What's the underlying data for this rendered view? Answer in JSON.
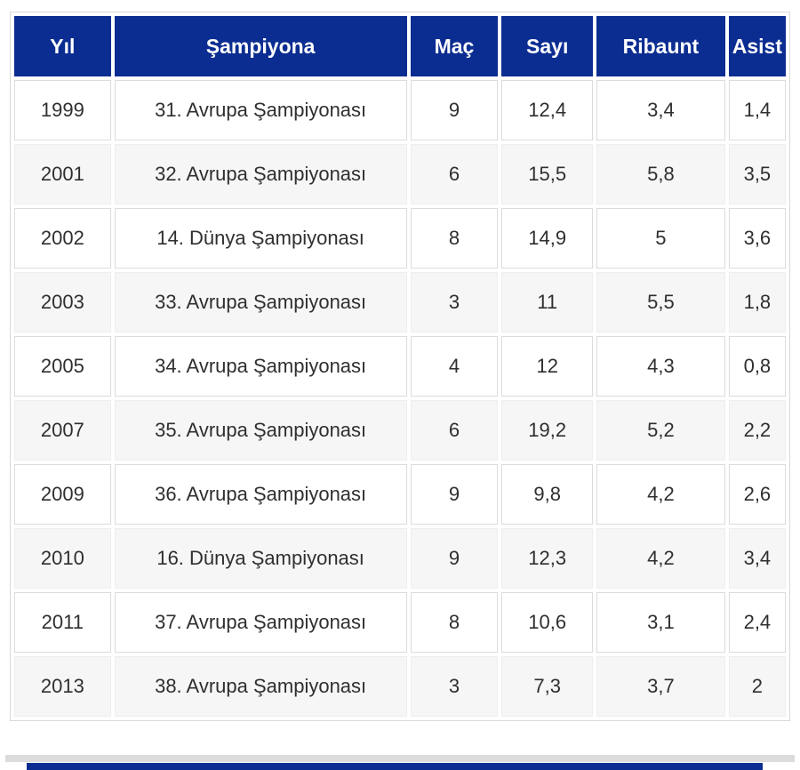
{
  "colors": {
    "header_bg": "#0b2d91",
    "header_text": "#ffffff",
    "cell_text": "#2f2f2f",
    "row_stripe": "#f6f6f6",
    "row_plain": "#ffffff",
    "grid_border": "#dcdcdc",
    "bottom_band_gray": "#dcdcdc",
    "bottom_band_navy": "#0b2d91"
  },
  "table": {
    "columns": [
      {
        "key": "yil",
        "label": "Yıl"
      },
      {
        "key": "sampiyona",
        "label": "Şampiyona"
      },
      {
        "key": "mac",
        "label": "Maç"
      },
      {
        "key": "sayi",
        "label": "Sayı"
      },
      {
        "key": "ribaunt",
        "label": "Ribaunt"
      },
      {
        "key": "asist",
        "label": "Asist"
      }
    ],
    "rows": [
      [
        "1999",
        "31. Avrupa Şampiyonası",
        "9",
        "12,4",
        "3,4",
        "1,4"
      ],
      [
        "2001",
        "32. Avrupa Şampiyonası",
        "6",
        "15,5",
        "5,8",
        "3,5"
      ],
      [
        "2002",
        "14. Dünya Şampiyonası",
        "8",
        "14,9",
        "5",
        "3,6"
      ],
      [
        "2003",
        "33. Avrupa Şampiyonası",
        "3",
        "11",
        "5,5",
        "1,8"
      ],
      [
        "2005",
        "34. Avrupa Şampiyonası",
        "4",
        "12",
        "4,3",
        "0,8"
      ],
      [
        "2007",
        "35. Avrupa Şampiyonası",
        "6",
        "19,2",
        "5,2",
        "2,2"
      ],
      [
        "2009",
        "36. Avrupa Şampiyonası",
        "9",
        "9,8",
        "4,2",
        "2,6"
      ],
      [
        "2010",
        "16. Dünya Şampiyonası",
        "9",
        "12,3",
        "4,2",
        "3,4"
      ],
      [
        "2011",
        "37. Avrupa Şampiyonası",
        "8",
        "10,6",
        "3,1",
        "2,4"
      ],
      [
        "2013",
        "38. Avrupa Şampiyonası",
        "3",
        "7,3",
        "3,7",
        "2"
      ]
    ]
  },
  "chart_data": {
    "type": "table",
    "columns": [
      "Yıl",
      "Şampiyona",
      "Maç",
      "Sayı",
      "Ribaunt",
      "Asist"
    ],
    "rows": [
      [
        "1999",
        "31. Avrupa Şampiyonası",
        "9",
        "12,4",
        "3,4",
        "1,4"
      ],
      [
        "2001",
        "32. Avrupa Şampiyonası",
        "6",
        "15,5",
        "5,8",
        "3,5"
      ],
      [
        "2002",
        "14. Dünya Şampiyonası",
        "8",
        "14,9",
        "5",
        "3,6"
      ],
      [
        "2003",
        "33. Avrupa Şampiyonası",
        "3",
        "11",
        "5,5",
        "1,8"
      ],
      [
        "2005",
        "34. Avrupa Şampiyonası",
        "4",
        "12",
        "4,3",
        "0,8"
      ],
      [
        "2007",
        "35. Avrupa Şampiyonası",
        "6",
        "19,2",
        "5,2",
        "2,2"
      ],
      [
        "2009",
        "36. Avrupa Şampiyonası",
        "9",
        "9,8",
        "4,2",
        "2,6"
      ],
      [
        "2010",
        "16. Dünya Şampiyonası",
        "9",
        "12,3",
        "4,2",
        "3,4"
      ],
      [
        "2011",
        "37. Avrupa Şampiyonası",
        "8",
        "10,6",
        "3,1",
        "2,4"
      ],
      [
        "2013",
        "38. Avrupa Şampiyonası",
        "3",
        "7,3",
        "3,7",
        "2"
      ]
    ]
  }
}
